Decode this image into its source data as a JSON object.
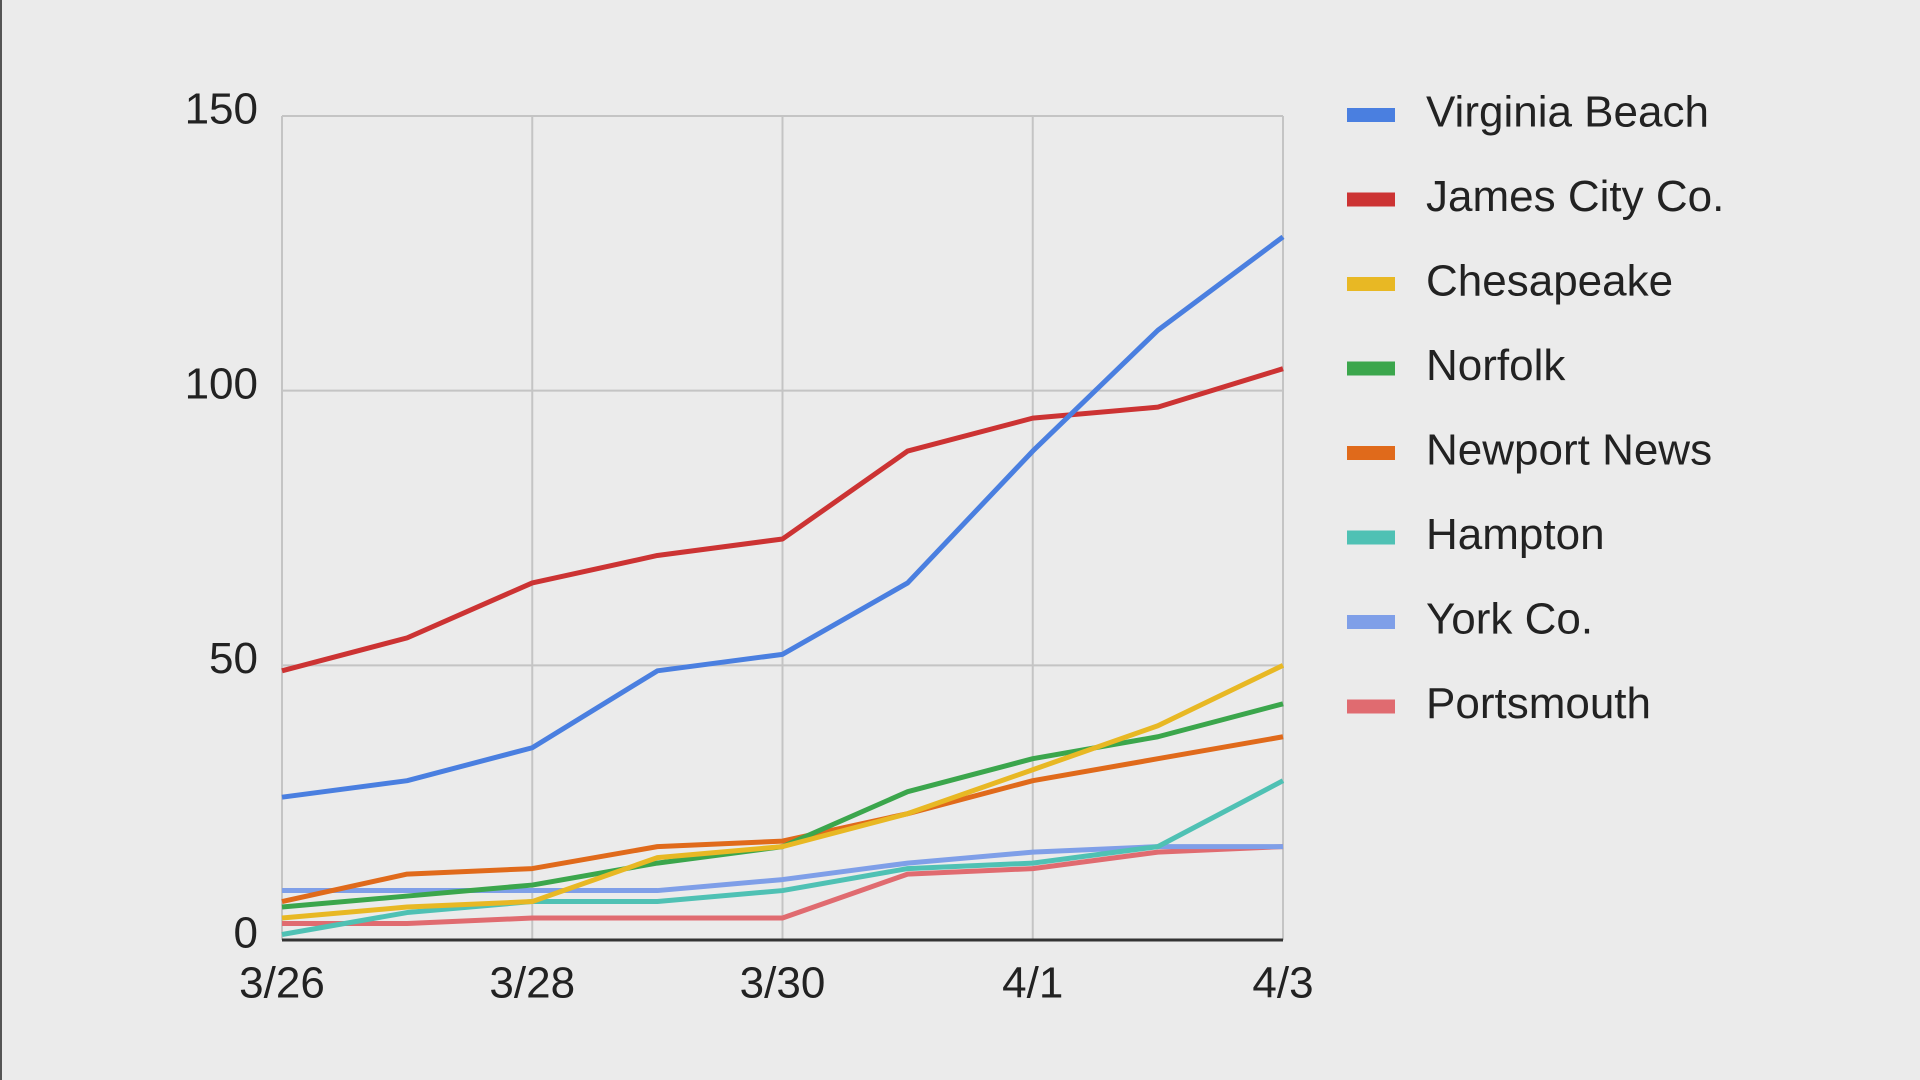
{
  "chart_data": {
    "type": "line",
    "categories": [
      "3/26",
      null,
      "3/28",
      null,
      "3/30",
      null,
      "4/1",
      null,
      "4/3"
    ],
    "ylim": [
      0,
      150
    ],
    "yticks": [
      0,
      50,
      100,
      150
    ],
    "grid": true,
    "legend": "right",
    "series": [
      {
        "name": "Virginia Beach",
        "color": "#4a7fe0",
        "values": [
          26,
          29,
          35,
          49,
          52,
          65,
          89,
          111,
          128
        ]
      },
      {
        "name": "James City Co.",
        "color": "#cc3333",
        "values": [
          49,
          55,
          65,
          70,
          73,
          89,
          95,
          97,
          104
        ]
      },
      {
        "name": "Chesapeake",
        "color": "#e8b824",
        "values": [
          4,
          6,
          7,
          15,
          17,
          23,
          31,
          39,
          50
        ]
      },
      {
        "name": "Norfolk",
        "color": "#3ba64c",
        "values": [
          6,
          8,
          10,
          14,
          17,
          27,
          33,
          37,
          43
        ]
      },
      {
        "name": "Newport News",
        "color": "#e06a1b",
        "values": [
          7,
          12,
          13,
          17,
          18,
          23,
          29,
          33,
          37
        ]
      },
      {
        "name": "Hampton",
        "color": "#4fc1b4",
        "values": [
          1,
          5,
          7,
          7,
          9,
          13,
          14,
          17,
          29
        ]
      },
      {
        "name": "York Co.",
        "color": "#7f9fe8",
        "values": [
          9,
          9,
          9,
          9,
          11,
          14,
          16,
          17,
          17
        ]
      },
      {
        "name": "Portsmouth",
        "color": "#e06b70",
        "values": [
          3,
          3,
          4,
          4,
          4,
          12,
          13,
          16,
          17
        ]
      }
    ]
  }
}
